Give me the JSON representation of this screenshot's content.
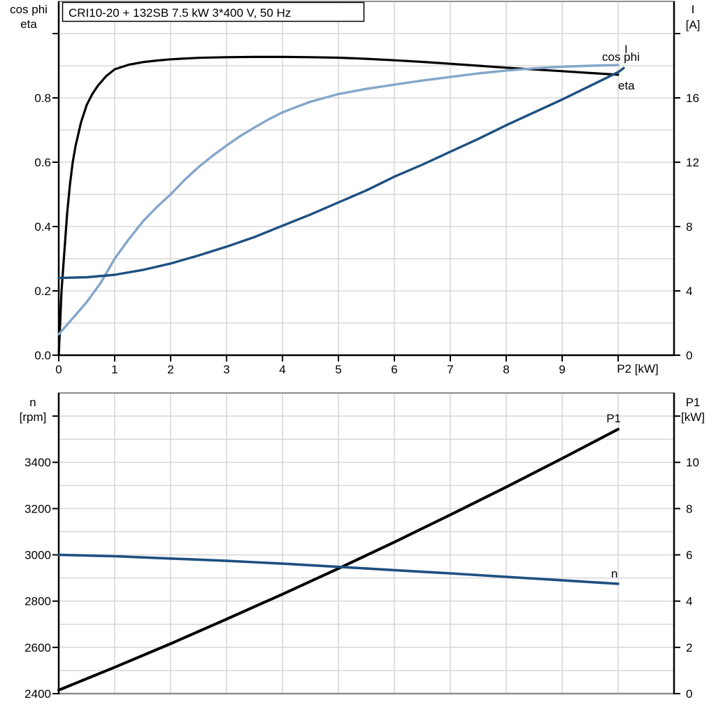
{
  "title_box": "CRI10-20 + 132SB   7.5 kW   3*400 V, 50 Hz",
  "colors": {
    "black": "#000000",
    "dark_blue": "#1d5080",
    "light_blue": "#84a6ca",
    "grid": "#d9d9d9",
    "border_gray": "#8c8c8c",
    "background": "#ffffff"
  },
  "chart_data": [
    {
      "type": "line",
      "title": "CRI10-20 + 132SB   7.5 kW   3*400 V, 50 Hz",
      "x_axis": {
        "label": "P2 [kW]",
        "min": 0,
        "max": 11,
        "major_step": 1,
        "tick_labels": [
          "0",
          "1",
          "2",
          "3",
          "4",
          "5",
          "6",
          "7",
          "8",
          "9"
        ]
      },
      "left_axis": {
        "title_line1": "cos phi",
        "title_line2": "eta",
        "min": 0,
        "max": 1.1,
        "major_step": 0.2,
        "minor_step": 0.1,
        "tick_labels": [
          "0.0",
          "0.2",
          "0.4",
          "0.6",
          "0.8"
        ]
      },
      "right_axis": {
        "title_line1": "I",
        "title_line2": "[A]",
        "min": 0,
        "max": 22,
        "major_step": 4,
        "minor_step": 2,
        "tick_labels": [
          "0",
          "4",
          "8",
          "12",
          "16"
        ]
      },
      "series": [
        {
          "name": "eta",
          "label": "eta",
          "axis": "left",
          "color": "black",
          "points": [
            [
              0,
              0
            ],
            [
              0.05,
              0.2
            ],
            [
              0.1,
              0.32
            ],
            [
              0.15,
              0.44
            ],
            [
              0.2,
              0.53
            ],
            [
              0.25,
              0.6
            ],
            [
              0.3,
              0.65
            ],
            [
              0.4,
              0.725
            ],
            [
              0.5,
              0.778
            ],
            [
              0.6,
              0.812
            ],
            [
              0.7,
              0.838
            ],
            [
              0.85,
              0.868
            ],
            [
              1,
              0.889
            ],
            [
              1.25,
              0.903
            ],
            [
              1.5,
              0.911
            ],
            [
              1.75,
              0.916
            ],
            [
              2,
              0.92
            ],
            [
              2.5,
              0.9245
            ],
            [
              3,
              0.9265
            ],
            [
              3.5,
              0.9275
            ],
            [
              4,
              0.9275
            ],
            [
              4.5,
              0.9265
            ],
            [
              5,
              0.925
            ],
            [
              5.5,
              0.9215
            ],
            [
              6,
              0.917
            ],
            [
              6.5,
              0.912
            ],
            [
              7,
              0.906
            ],
            [
              7.5,
              0.9
            ],
            [
              8,
              0.894
            ],
            [
              8.5,
              0.8885
            ],
            [
              9,
              0.883
            ],
            [
              9.5,
              0.8775
            ],
            [
              10,
              0.872
            ]
          ]
        },
        {
          "name": "cos_phi",
          "label": "cos phi",
          "axis": "left",
          "color": "light_blue",
          "points": [
            [
              0,
              0.065
            ],
            [
              0.25,
              0.115
            ],
            [
              0.5,
              0.165
            ],
            [
              0.75,
              0.225
            ],
            [
              1,
              0.3
            ],
            [
              1.25,
              0.36
            ],
            [
              1.5,
              0.415
            ],
            [
              1.75,
              0.46
            ],
            [
              2,
              0.5
            ],
            [
              2.25,
              0.545
            ],
            [
              2.5,
              0.585
            ],
            [
              2.75,
              0.62
            ],
            [
              3,
              0.652
            ],
            [
              3.25,
              0.682
            ],
            [
              3.5,
              0.708
            ],
            [
              3.75,
              0.733
            ],
            [
              4,
              0.755
            ],
            [
              4.25,
              0.772
            ],
            [
              4.5,
              0.788
            ],
            [
              5,
              0.812
            ],
            [
              5.5,
              0.828
            ],
            [
              6,
              0.841
            ],
            [
              6.5,
              0.854
            ],
            [
              7,
              0.865
            ],
            [
              7.5,
              0.876
            ],
            [
              8,
              0.885
            ],
            [
              8.5,
              0.892
            ],
            [
              9,
              0.897
            ],
            [
              9.5,
              0.9
            ],
            [
              10,
              0.902
            ]
          ]
        },
        {
          "name": "I",
          "label": "I",
          "axis": "right",
          "color": "dark_blue",
          "points": [
            [
              0,
              4.8
            ],
            [
              0.5,
              4.85
            ],
            [
              1,
              5
            ],
            [
              1.5,
              5.3
            ],
            [
              2,
              5.7
            ],
            [
              2.5,
              6.2
            ],
            [
              3,
              6.75
            ],
            [
              3.5,
              7.35
            ],
            [
              4,
              8.05
            ],
            [
              4.5,
              8.75
            ],
            [
              5,
              9.5
            ],
            [
              5.5,
              10.25
            ],
            [
              6,
              11.1
            ],
            [
              6.5,
              11.85
            ],
            [
              7,
              12.65
            ],
            [
              7.5,
              13.45
            ],
            [
              8,
              14.3
            ],
            [
              8.5,
              15.1
            ],
            [
              9,
              15.9
            ],
            [
              9.5,
              16.75
            ],
            [
              10,
              17.6
            ],
            [
              10.1,
              17.85
            ]
          ]
        }
      ]
    },
    {
      "type": "line",
      "x_axis": {
        "label": "",
        "min": 0,
        "max": 11,
        "major_step": 1,
        "tick_labels": []
      },
      "left_axis": {
        "title_line1": "n",
        "title_line2": "[rpm]",
        "min": 2400,
        "max": 3700,
        "major_step": 200,
        "minor_step": 100,
        "tick_labels": [
          "2400",
          "2600",
          "2800",
          "3000",
          "3200",
          "3400"
        ]
      },
      "right_axis": {
        "title_line1": "P1",
        "title_line2": "[kW]",
        "min": 0,
        "max": 13,
        "major_step": 2,
        "minor_step": 1,
        "tick_labels": [
          "0",
          "2",
          "4",
          "6",
          "8",
          "10"
        ]
      },
      "series": [
        {
          "name": "P1",
          "label": "P1",
          "axis": "right",
          "color": "black",
          "points": [
            [
              0,
              0.15
            ],
            [
              1,
              1.14
            ],
            [
              2,
              2.16
            ],
            [
              3,
              3.22
            ],
            [
              4,
              4.3
            ],
            [
              5,
              5.41
            ],
            [
              6,
              6.55
            ],
            [
              7,
              7.73
            ],
            [
              8,
              8.93
            ],
            [
              9,
              10.17
            ],
            [
              10,
              11.43
            ]
          ]
        },
        {
          "name": "n",
          "label": "n",
          "axis": "left",
          "color": "dark_blue",
          "points": [
            [
              0,
              3000
            ],
            [
              1,
              2994
            ],
            [
              2,
              2984
            ],
            [
              3,
              2974
            ],
            [
              4,
              2962
            ],
            [
              5,
              2948
            ],
            [
              6,
              2934
            ],
            [
              7,
              2920
            ],
            [
              8,
              2905
            ],
            [
              9,
              2890
            ],
            [
              10,
              2875
            ]
          ]
        }
      ]
    }
  ]
}
